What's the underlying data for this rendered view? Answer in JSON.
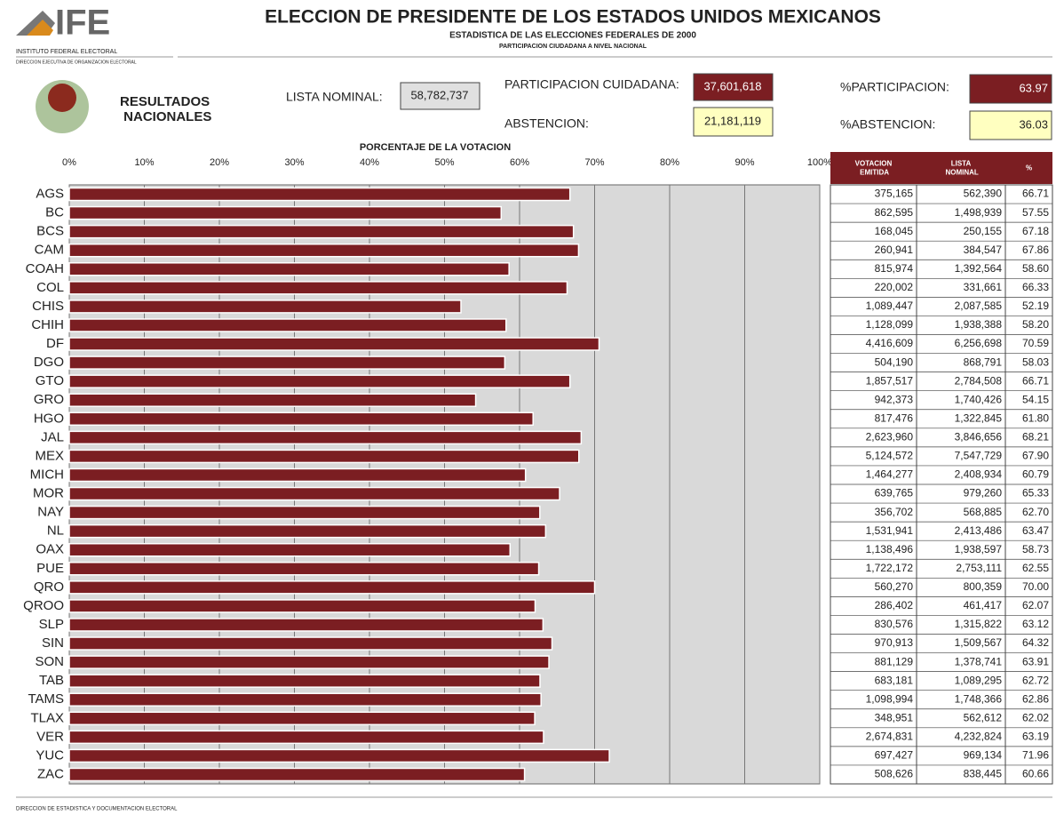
{
  "header": {
    "logo": "IFE",
    "institute": "INSTITUTO FEDERAL ELECTORAL",
    "office": "DIRECCION EJECUTIVA DE ORGANIZACION ELECTORAL",
    "title": "ELECCION DE PRESIDENTE DE LOS ESTADOS UNIDOS MEXICANOS",
    "subtitle": "ESTADISTICA DE LAS ELECCIONES FEDERALES DE 2000",
    "subsubtitle": "PARTICIPACION CIUDADANA A NIVEL NACIONAL"
  },
  "summary": {
    "heading": "RESULTADOS NACIONALES",
    "lista_label": "LISTA NOMINAL:",
    "lista": "58,782,737",
    "participacion_label": "PARTICIPACION CUIDADANA:",
    "participacion": "37,601,618",
    "abstencion_label": "ABSTENCION:",
    "abstencion": "21,181,119",
    "pct_participacion_label": "%PARTICIPACION:",
    "pct_participacion": "63.97",
    "pct_abstencion_label": "%ABSTENCION:",
    "pct_abstencion": "36.03"
  },
  "chart_data": {
    "type": "hbar",
    "title": "PORCENTAJE DE LA VOTACION",
    "color": "#7b1e22",
    "grid": true,
    "categories": [
      "AGS",
      "BC",
      "BCS",
      "CAM",
      "COAH",
      "COL",
      "CHIS",
      "CHIH",
      "DF",
      "DGO",
      "GTO",
      "GRO",
      "HGO",
      "JAL",
      "MEX",
      "MICH",
      "MOR",
      "NAY",
      "NL",
      "OAX",
      "PUE",
      "QRO",
      "QROO",
      "SLP",
      "SIN",
      "SON",
      "TAB",
      "TAMS",
      "TLAX",
      "VER",
      "YUC",
      "ZAC"
    ],
    "values": [
      66.71,
      57.55,
      67.18,
      67.86,
      58.6,
      66.33,
      52.19,
      58.2,
      70.59,
      58.03,
      66.71,
      54.15,
      61.8,
      68.21,
      67.9,
      60.79,
      65.33,
      62.7,
      63.47,
      58.73,
      62.55,
      70,
      62.07,
      63.12,
      64.32,
      63.91,
      62.72,
      62.86,
      62.02,
      63.19,
      71.96,
      60.66
    ],
    "value_labels": [
      "66.71",
      "57.55",
      "67.18",
      "67.86",
      "58.60",
      "66.33",
      "52.19",
      "58.20",
      "70.59",
      "58.03",
      "66.71",
      "54.15",
      "61.80",
      "68.21",
      "67.90",
      "60.79",
      "65.33",
      "62.70",
      "63.47",
      "58.73",
      "62.55",
      "70.00",
      "62.07",
      "63.12",
      "64.32",
      "63.91",
      "62.72",
      "62.86",
      "62.02",
      "63.19",
      "71.96",
      "60.66"
    ],
    "xlim": [
      0,
      100
    ],
    "xticks": [
      {
        "value": 0,
        "label": "0%"
      },
      {
        "value": 10,
        "label": "10%"
      },
      {
        "value": 20,
        "label": "20%"
      },
      {
        "value": 30,
        "label": "30%"
      },
      {
        "value": 40,
        "label": "40%"
      },
      {
        "value": 50,
        "label": "50%"
      },
      {
        "value": 60,
        "label": "60%"
      },
      {
        "value": 70,
        "label": "70%"
      },
      {
        "value": 80,
        "label": "80%"
      },
      {
        "value": 90,
        "label": "90%"
      },
      {
        "value": 100,
        "label": "100%"
      }
    ]
  },
  "table": {
    "columns": [
      "VOTACION EMITIDA",
      "LISTA NOMINAL",
      "%"
    ],
    "votacion": [
      "375,165",
      "862,595",
      "168,045",
      "260,941",
      "815,974",
      "220,002",
      "1,089,447",
      "1,128,099",
      "4,416,609",
      "504,190",
      "1,857,517",
      "942,373",
      "817,476",
      "2,623,960",
      "5,124,572",
      "1,464,277",
      "639,765",
      "356,702",
      "1,531,941",
      "1,138,496",
      "1,722,172",
      "560,270",
      "286,402",
      "830,576",
      "970,913",
      "881,129",
      "683,181",
      "1,098,994",
      "348,951",
      "2,674,831",
      "697,427",
      "508,626"
    ],
    "lista": [
      "562,390",
      "1,498,939",
      "250,155",
      "384,547",
      "1,392,564",
      "331,661",
      "2,087,585",
      "1,938,388",
      "6,256,698",
      "868,791",
      "2,784,508",
      "1,740,426",
      "1,322,845",
      "3,846,656",
      "7,547,729",
      "2,408,934",
      "979,260",
      "568,885",
      "2,413,486",
      "1,938,597",
      "2,753,111",
      "800,359",
      "461,417",
      "1,315,822",
      "1,509,567",
      "1,378,741",
      "1,089,295",
      "1,748,366",
      "562,612",
      "4,232,824",
      "969,134",
      "838,445"
    ]
  },
  "footer": "DIRECCION DE ESTADISTICA Y DOCUMENTACION ELECTORAL"
}
